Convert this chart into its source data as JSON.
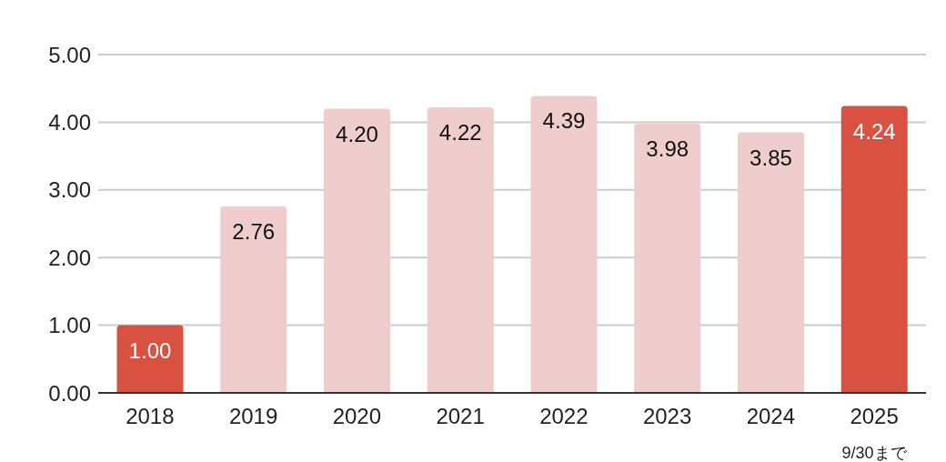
{
  "chart_data": {
    "type": "bar",
    "categories": [
      "2018",
      "2019",
      "2020",
      "2021",
      "2022",
      "2023",
      "2024",
      "2025"
    ],
    "values": [
      1.0,
      2.76,
      4.2,
      4.22,
      4.39,
      3.98,
      3.85,
      4.24
    ],
    "colors": [
      "#d95141",
      "#eecdcc",
      "#eecdcc",
      "#eecdcc",
      "#eecdcc",
      "#eecdcc",
      "#eecdcc",
      "#d95141"
    ],
    "ylim": [
      0,
      5
    ],
    "yticks": [
      {
        "value": 0,
        "label": "0.00"
      },
      {
        "value": 1,
        "label": "1.00"
      },
      {
        "value": 2,
        "label": "2.00"
      },
      {
        "value": 3,
        "label": "3.00"
      },
      {
        "value": 4,
        "label": "4.00"
      },
      {
        "value": 5,
        "label": "5.00"
      }
    ],
    "value_labels": [
      "1.00",
      "2.76",
      "4.20",
      "4.22",
      "4.39",
      "3.98",
      "3.85",
      "4.24"
    ],
    "grid": "y",
    "annotations": [
      "9/30まで"
    ]
  }
}
